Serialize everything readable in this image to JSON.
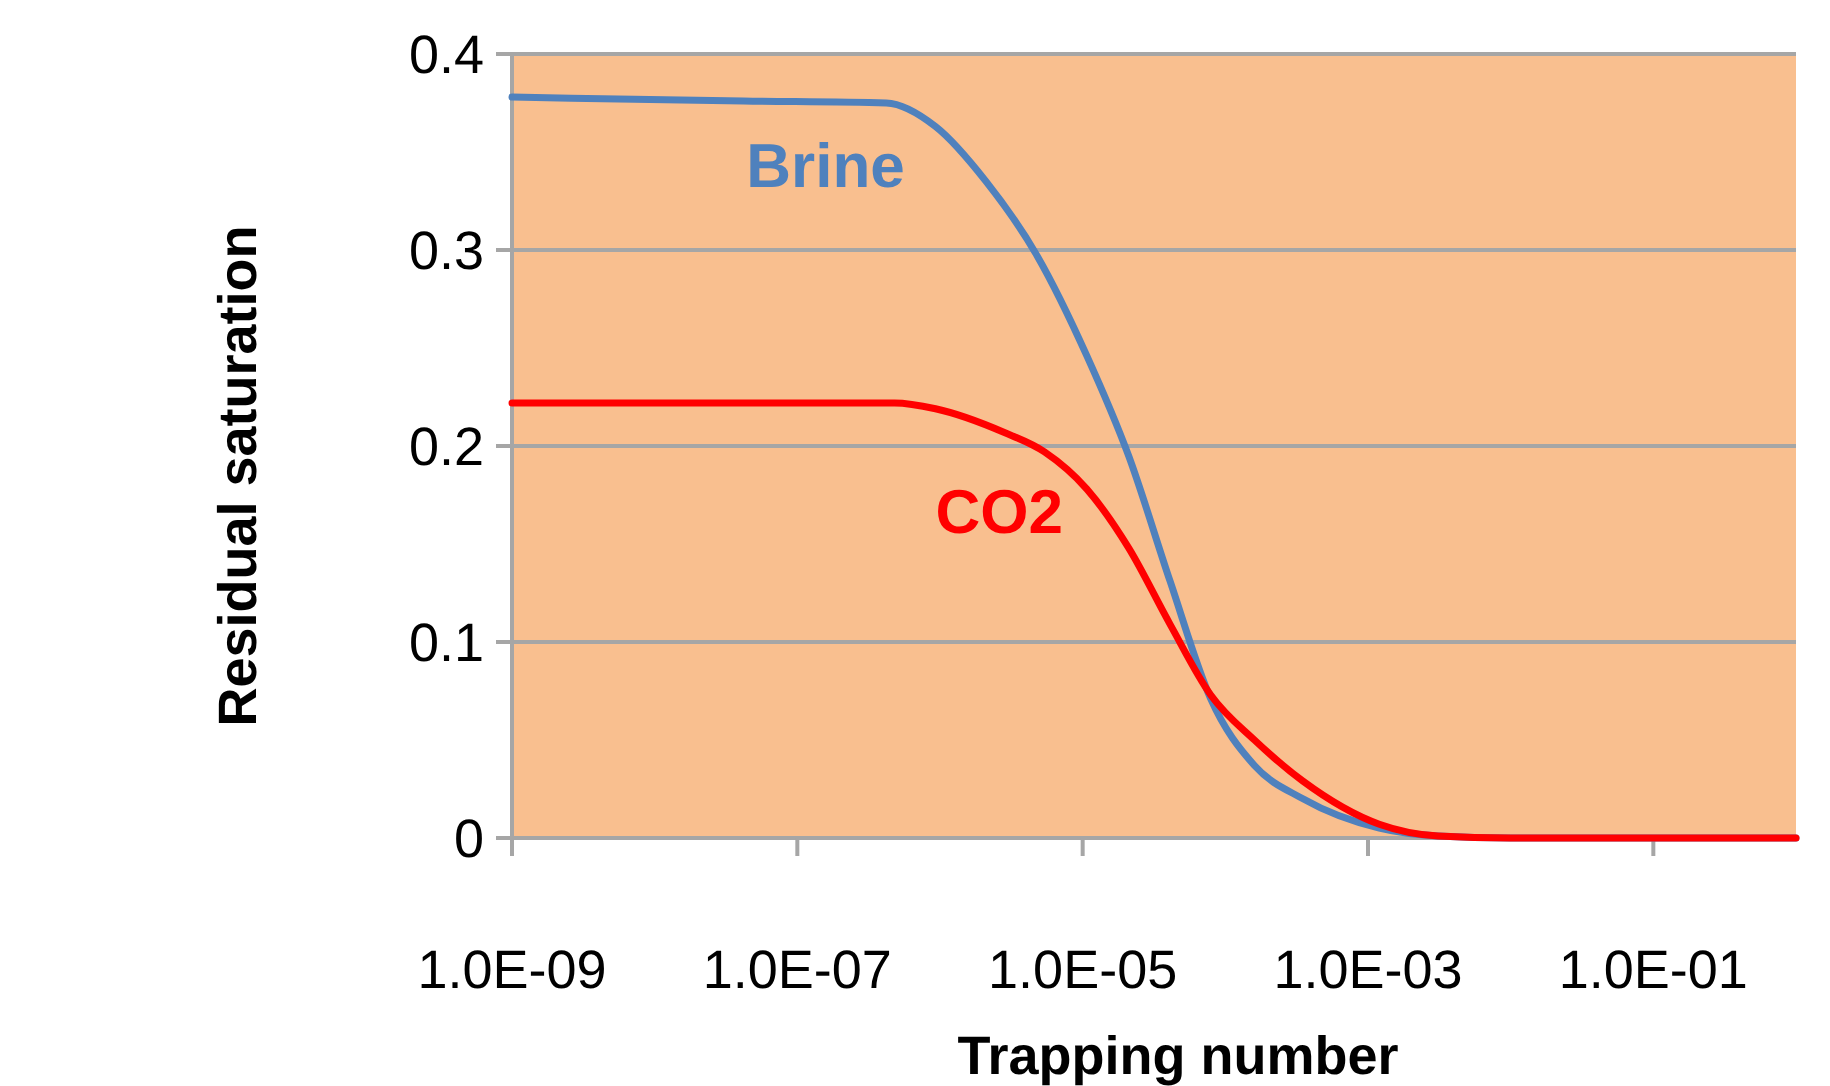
{
  "chart_data": {
    "type": "line",
    "xlabel": "Trapping number",
    "ylabel": "Residual saturation",
    "log": "x",
    "xlim": [
      1e-09,
      1
    ],
    "ylim": [
      0,
      0.4
    ],
    "xticks": [
      {
        "value": 1e-09,
        "label": "1.0E-09"
      },
      {
        "value": 1e-07,
        "label": "1.0E-07"
      },
      {
        "value": 1e-05,
        "label": "1.0E-05"
      },
      {
        "value": 0.001,
        "label": "1.0E-03"
      },
      {
        "value": 0.1,
        "label": "1.0E-01"
      }
    ],
    "yticks": [
      0,
      0.1,
      0.2,
      0.3,
      0.4
    ],
    "grid": "y",
    "legend": false,
    "marker": "none",
    "line_style": "solid",
    "series": [
      {
        "name": "Brine",
        "color": "#4f81bd",
        "x": [
          1e-09,
          4.2e-08,
          4.2e-07,
          9.3e-07,
          2.1e-06,
          4.8e-06,
          1.07e-05,
          2.1e-05,
          4.1e-05,
          7.9e-05,
          0.00016,
          0.00035,
          0.0012,
          0.0031,
          0.01,
          1
        ],
        "values": [
          0.378,
          0.376,
          0.375,
          0.363,
          0.335,
          0.297,
          0.246,
          0.195,
          0.131,
          0.071,
          0.037,
          0.02,
          0.005,
          0.001,
          0,
          0
        ]
      },
      {
        "name": "CO2",
        "color": "#ff0000",
        "x": [
          1e-09,
          4.8e-07,
          9.3e-07,
          2.8e-06,
          5.4e-06,
          1.07e-05,
          2.1e-05,
          4.1e-05,
          7.9e-05,
          0.00016,
          0.00035,
          0.0012,
          0.0031,
          0.01,
          1
        ],
        "values": [
          0.222,
          0.222,
          0.219,
          0.207,
          0.197,
          0.178,
          0.148,
          0.109,
          0.073,
          0.05,
          0.029,
          0.007,
          0.001,
          0,
          0
        ]
      }
    ]
  }
}
